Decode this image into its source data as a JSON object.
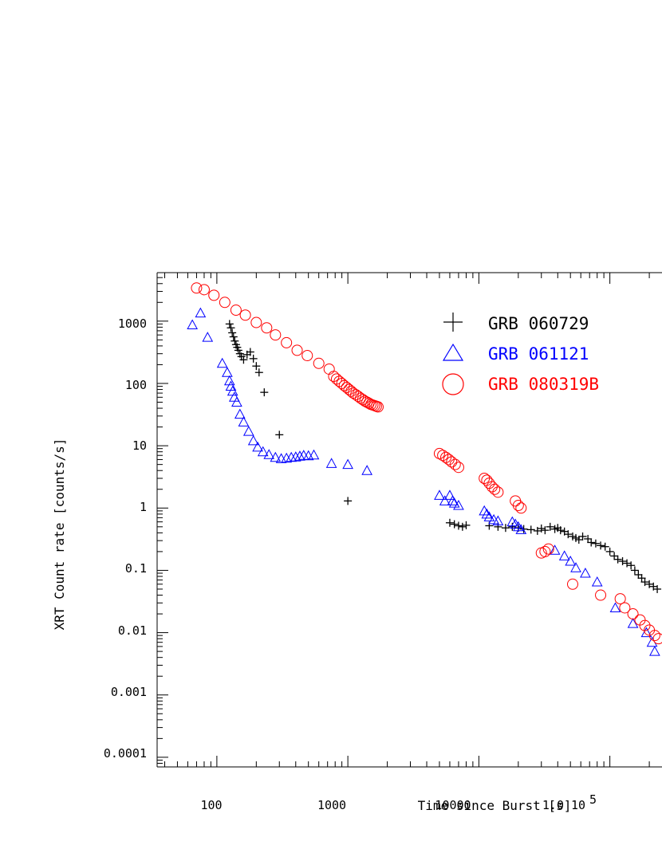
{
  "chart_data": {
    "type": "scatter",
    "xlabel": "Time since Burst [s]",
    "ylabel": "XRT Count rate [counts/s]",
    "xscale": "log",
    "yscale": "log",
    "xlim": [
      35,
      250000
    ],
    "ylim": [
      7e-05,
      6000
    ],
    "x_tick_labels": [
      "100",
      "1000",
      "10000",
      "1.0 10",
      "5"
    ],
    "y_tick_labels": [
      "1000",
      "100",
      "10",
      "1",
      "0.1",
      "0.01",
      "0.001",
      "0.0001"
    ],
    "legend_position": "top-right",
    "series": [
      {
        "name": "GRB 060729",
        "color": "#000000",
        "marker": "plus",
        "points": [
          [
            125,
            900
          ],
          [
            128,
            780
          ],
          [
            131,
            650
          ],
          [
            134,
            560
          ],
          [
            137,
            480
          ],
          [
            140,
            420
          ],
          [
            143,
            380
          ],
          [
            146,
            340
          ],
          [
            150,
            300
          ],
          [
            154,
            270
          ],
          [
            160,
            240
          ],
          [
            170,
            290
          ],
          [
            180,
            320
          ],
          [
            190,
            250
          ],
          [
            200,
            190
          ],
          [
            210,
            150
          ],
          [
            230,
            72
          ],
          [
            300,
            15
          ],
          [
            1000,
            1.3
          ],
          [
            6000,
            0.58
          ],
          [
            6500,
            0.55
          ],
          [
            7000,
            0.52
          ],
          [
            7500,
            0.5
          ],
          [
            8000,
            0.53
          ],
          [
            12000,
            0.52
          ],
          [
            14000,
            0.5
          ],
          [
            16000,
            0.48
          ],
          [
            18000,
            0.5
          ],
          [
            20000,
            0.48
          ],
          [
            22000,
            0.46
          ],
          [
            25000,
            0.45
          ],
          [
            28000,
            0.43
          ],
          [
            30000,
            0.47
          ],
          [
            32000,
            0.44
          ],
          [
            35000,
            0.5
          ],
          [
            38000,
            0.46
          ],
          [
            40000,
            0.48
          ],
          [
            42000,
            0.44
          ],
          [
            45000,
            0.42
          ],
          [
            48000,
            0.38
          ],
          [
            52000,
            0.35
          ],
          [
            55000,
            0.33
          ],
          [
            58000,
            0.31
          ],
          [
            62000,
            0.35
          ],
          [
            68000,
            0.32
          ],
          [
            72000,
            0.28
          ],
          [
            78000,
            0.27
          ],
          [
            85000,
            0.25
          ],
          [
            92000,
            0.24
          ],
          [
            100000,
            0.2
          ],
          [
            108000,
            0.17
          ],
          [
            115000,
            0.15
          ],
          [
            125000,
            0.14
          ],
          [
            135000,
            0.13
          ],
          [
            145000,
            0.12
          ],
          [
            155000,
            0.1
          ],
          [
            165000,
            0.085
          ],
          [
            175000,
            0.075
          ],
          [
            185000,
            0.065
          ],
          [
            200000,
            0.06
          ],
          [
            215000,
            0.055
          ],
          [
            230000,
            0.05
          ]
        ]
      },
      {
        "name": "GRB 061121",
        "color": "#0000ff",
        "marker": "triangle",
        "points": [
          [
            65,
            870
          ],
          [
            75,
            1350
          ],
          [
            85,
            550
          ],
          [
            110,
            210
          ],
          [
            120,
            150
          ],
          [
            125,
            110
          ],
          [
            128,
            90
          ],
          [
            132,
            75
          ],
          [
            136,
            60
          ],
          [
            142,
            50
          ],
          [
            150,
            32
          ],
          [
            160,
            24
          ],
          [
            175,
            17
          ],
          [
            190,
            12
          ],
          [
            205,
            9.5
          ],
          [
            225,
            8
          ],
          [
            250,
            7.2
          ],
          [
            280,
            6.5
          ],
          [
            310,
            6.2
          ],
          [
            340,
            6.3
          ],
          [
            370,
            6.5
          ],
          [
            400,
            6.6
          ],
          [
            430,
            6.8
          ],
          [
            460,
            7
          ],
          [
            500,
            6.9
          ],
          [
            550,
            7.1
          ],
          [
            750,
            5.2
          ],
          [
            1000,
            5
          ],
          [
            1400,
            4
          ],
          [
            5000,
            1.6
          ],
          [
            5500,
            1.3
          ],
          [
            6000,
            1.6
          ],
          [
            6300,
            1.3
          ],
          [
            6500,
            1.2
          ],
          [
            7000,
            1.1
          ],
          [
            11000,
            0.9
          ],
          [
            11500,
            0.8
          ],
          [
            12000,
            0.72
          ],
          [
            13000,
            0.65
          ],
          [
            14000,
            0.62
          ],
          [
            18000,
            0.6
          ],
          [
            19000,
            0.55
          ],
          [
            20000,
            0.5
          ],
          [
            21000,
            0.45
          ],
          [
            38000,
            0.21
          ],
          [
            45000,
            0.17
          ],
          [
            50000,
            0.14
          ],
          [
            55000,
            0.11
          ],
          [
            65000,
            0.09
          ],
          [
            80000,
            0.065
          ],
          [
            110000,
            0.025
          ],
          [
            150000,
            0.014
          ],
          [
            190000,
            0.01
          ],
          [
            210000,
            0.007
          ],
          [
            220000,
            0.005
          ]
        ]
      },
      {
        "name": "GRB 080319B",
        "color": "#ff0000",
        "marker": "circle",
        "points": [
          [
            70,
            3400
          ],
          [
            80,
            3200
          ],
          [
            95,
            2600
          ],
          [
            115,
            2000
          ],
          [
            140,
            1500
          ],
          [
            165,
            1250
          ],
          [
            200,
            950
          ],
          [
            240,
            780
          ],
          [
            280,
            600
          ],
          [
            340,
            450
          ],
          [
            410,
            340
          ],
          [
            490,
            280
          ],
          [
            600,
            210
          ],
          [
            720,
            170
          ],
          [
            780,
            130
          ],
          [
            820,
            118
          ],
          [
            860,
            108
          ],
          [
            900,
            100
          ],
          [
            940,
            92
          ],
          [
            980,
            86
          ],
          [
            1020,
            80
          ],
          [
            1060,
            75
          ],
          [
            1100,
            70
          ],
          [
            1150,
            66
          ],
          [
            1200,
            62
          ],
          [
            1250,
            58
          ],
          [
            1300,
            55
          ],
          [
            1350,
            52
          ],
          [
            1400,
            50
          ],
          [
            1450,
            48
          ],
          [
            1500,
            46
          ],
          [
            1550,
            45
          ],
          [
            1600,
            44
          ],
          [
            1650,
            43
          ],
          [
            1700,
            42
          ],
          [
            5000,
            7.5
          ],
          [
            5300,
            7
          ],
          [
            5600,
            6.5
          ],
          [
            5900,
            6
          ],
          [
            6200,
            5.5
          ],
          [
            6600,
            5
          ],
          [
            7000,
            4.5
          ],
          [
            11000,
            3
          ],
          [
            11500,
            2.8
          ],
          [
            12000,
            2.5
          ],
          [
            12600,
            2.2
          ],
          [
            13200,
            2
          ],
          [
            14000,
            1.8
          ],
          [
            19000,
            1.3
          ],
          [
            20000,
            1.1
          ],
          [
            21000,
            1
          ],
          [
            30000,
            0.19
          ],
          [
            32000,
            0.2
          ],
          [
            34000,
            0.22
          ],
          [
            52000,
            0.06
          ],
          [
            85000,
            0.04
          ],
          [
            120000,
            0.035
          ],
          [
            130000,
            0.025
          ],
          [
            150000,
            0.02
          ],
          [
            170000,
            0.016
          ],
          [
            185000,
            0.013
          ],
          [
            200000,
            0.011
          ],
          [
            220000,
            0.009
          ],
          [
            235000,
            0.008
          ]
        ]
      }
    ]
  }
}
